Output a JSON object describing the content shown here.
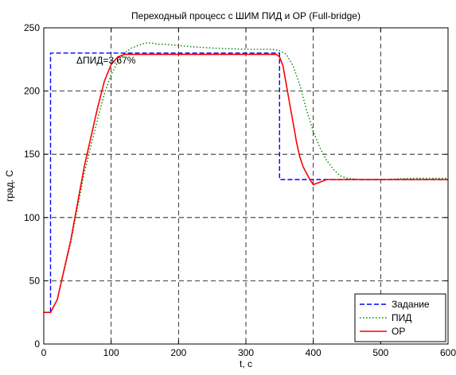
{
  "chart_data": {
    "type": "line",
    "title": "Переходный процесс с ШИМ ПИД и ОР (Full-bridge)",
    "xlabel": "t, c",
    "ylabel": "град. С",
    "xlim": [
      0,
      600
    ],
    "ylim": [
      0,
      250
    ],
    "xticks": [
      0,
      100,
      200,
      300,
      400,
      500,
      600
    ],
    "yticks": [
      0,
      50,
      100,
      150,
      200,
      250
    ],
    "grid": true,
    "legend_position": "bottom-right",
    "annotation": "ΔПИД=3.67%",
    "series": [
      {
        "name": "Задание",
        "style": "dashed",
        "color": "#0000ff",
        "x": [
          0,
          10,
          10,
          350,
          350,
          600
        ],
        "y": [
          25,
          25,
          230,
          230,
          130,
          130
        ]
      },
      {
        "name": "ПИД",
        "style": "dotted",
        "color": "#008000",
        "x": [
          0,
          10,
          20,
          40,
          60,
          80,
          90,
          100,
          110,
          120,
          130,
          140,
          150,
          160,
          170,
          180,
          200,
          220,
          250,
          300,
          340,
          350,
          360,
          370,
          380,
          390,
          400,
          410,
          420,
          430,
          440,
          450,
          470,
          500,
          550,
          600
        ],
        "y": [
          25,
          25,
          35,
          80,
          135,
          178,
          198,
          213,
          223,
          230,
          234,
          236,
          238,
          238,
          237,
          237,
          236,
          235,
          234,
          233,
          233,
          232,
          229,
          220,
          205,
          185,
          168,
          155,
          145,
          138,
          133,
          131,
          130,
          130,
          131,
          131
        ]
      },
      {
        "name": "ОР",
        "style": "solid",
        "color": "#ff0000",
        "x": [
          0,
          10,
          20,
          40,
          60,
          80,
          90,
          100,
          110,
          120,
          140,
          200,
          300,
          345,
          350,
          355,
          360,
          365,
          370,
          375,
          380,
          385,
          390,
          395,
          400,
          410,
          420,
          440,
          500,
          600
        ],
        "y": [
          25,
          25,
          35,
          82,
          140,
          187,
          208,
          221,
          227,
          229,
          229,
          229,
          229,
          229,
          227,
          220,
          205,
          190,
          175,
          160,
          148,
          140,
          135,
          130,
          126,
          128,
          130,
          130,
          130,
          130
        ]
      }
    ]
  }
}
